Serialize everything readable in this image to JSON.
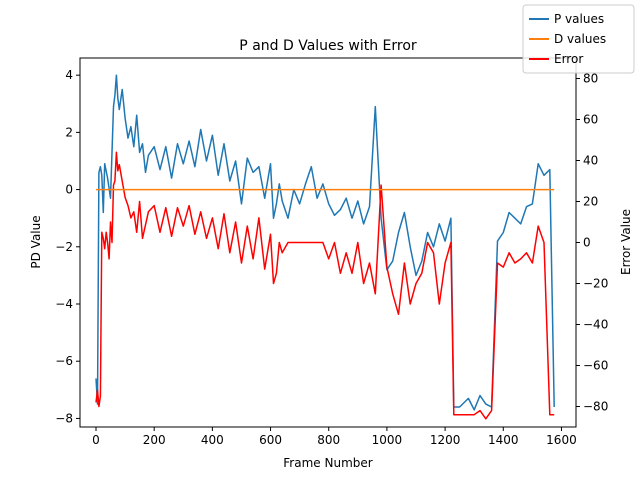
{
  "chart_data": {
    "type": "line",
    "title": "P and D Values with Error",
    "xlabel": "Frame Number",
    "ylabel_left": "PD Value",
    "ylabel_right": "Error Value",
    "xlim": [
      -55,
      1650
    ],
    "ylim_left": [
      -8.3,
      4.6
    ],
    "ylim_right": [
      -90,
      90
    ],
    "x_ticks": [
      0,
      200,
      400,
      600,
      800,
      1000,
      1200,
      1400,
      1600
    ],
    "y_ticks_left": [
      -8,
      -6,
      -4,
      -2,
      0,
      2,
      4
    ],
    "y_ticks_right": [
      -80,
      -60,
      -40,
      -20,
      0,
      20,
      40,
      60,
      80
    ],
    "legend_position": "top-right",
    "colors": {
      "p": "#1f77b4",
      "d": "#ff7f0e",
      "error": "#ff0000"
    },
    "series": [
      {
        "name": "P values",
        "axis": "left",
        "x": [
          0,
          5,
          10,
          15,
          20,
          25,
          30,
          40,
          50,
          60,
          65,
          70,
          75,
          80,
          90,
          100,
          110,
          120,
          130,
          140,
          150,
          160,
          170,
          180,
          200,
          220,
          240,
          260,
          280,
          300,
          320,
          340,
          360,
          380,
          400,
          420,
          440,
          460,
          480,
          500,
          520,
          540,
          560,
          580,
          600,
          610,
          620,
          630,
          640,
          660,
          680,
          700,
          720,
          740,
          760,
          780,
          800,
          820,
          840,
          860,
          880,
          900,
          920,
          940,
          960,
          980,
          1000,
          1020,
          1040,
          1060,
          1080,
          1100,
          1120,
          1140,
          1160,
          1180,
          1200,
          1220,
          1230,
          1250,
          1280,
          1300,
          1320,
          1340,
          1360,
          1380,
          1400,
          1420,
          1440,
          1460,
          1480,
          1500,
          1520,
          1540,
          1560,
          1575
        ],
        "y": [
          -6.6,
          -7.5,
          0.6,
          0.8,
          0.5,
          -0.8,
          0.9,
          0.4,
          -0.3,
          2.9,
          3.3,
          4.0,
          3.2,
          2.8,
          3.5,
          2.5,
          1.8,
          2.2,
          1.5,
          2.6,
          1.3,
          1.6,
          0.6,
          1.2,
          1.5,
          0.7,
          1.5,
          0.4,
          1.6,
          0.9,
          1.7,
          0.8,
          2.1,
          1.0,
          1.9,
          0.5,
          1.6,
          0.3,
          1.0,
          -0.5,
          1.1,
          0.6,
          0.8,
          -0.3,
          0.9,
          -1.0,
          -0.5,
          0.2,
          -0.4,
          -1.0,
          0.0,
          -0.5,
          0.2,
          0.8,
          -0.3,
          0.2,
          -0.5,
          -0.9,
          -0.7,
          -0.3,
          -1.0,
          -0.4,
          -1.2,
          -0.6,
          2.9,
          -1.0,
          -2.8,
          -2.5,
          -1.5,
          -0.8,
          -2.0,
          -3.0,
          -2.5,
          -1.5,
          -2.0,
          -1.2,
          -1.8,
          -1.0,
          -7.6,
          -7.6,
          -7.3,
          -7.7,
          -7.2,
          -7.5,
          -7.6,
          -1.8,
          -1.5,
          -0.8,
          -1.0,
          -1.2,
          -0.6,
          -0.5,
          0.9,
          0.5,
          0.7,
          -7.6
        ]
      },
      {
        "name": "D values",
        "axis": "left",
        "x": [
          0,
          1575
        ],
        "y": [
          0,
          0
        ]
      },
      {
        "name": "Error",
        "axis": "right",
        "x": [
          0,
          5,
          10,
          15,
          20,
          25,
          30,
          35,
          40,
          45,
          50,
          55,
          60,
          65,
          70,
          75,
          80,
          90,
          100,
          110,
          120,
          130,
          140,
          150,
          160,
          180,
          200,
          220,
          240,
          260,
          280,
          300,
          320,
          340,
          360,
          380,
          400,
          420,
          440,
          460,
          480,
          500,
          520,
          540,
          560,
          580,
          600,
          610,
          620,
          630,
          640,
          660,
          680,
          700,
          720,
          740,
          760,
          780,
          800,
          820,
          840,
          860,
          880,
          900,
          920,
          940,
          960,
          980,
          1000,
          1020,
          1040,
          1060,
          1080,
          1100,
          1120,
          1140,
          1160,
          1180,
          1200,
          1220,
          1230,
          1250,
          1280,
          1300,
          1320,
          1340,
          1360,
          1380,
          1400,
          1420,
          1440,
          1460,
          1480,
          1500,
          1520,
          1540,
          1560,
          1575
        ],
        "y": [
          -78,
          -72,
          -80,
          -75,
          5,
          2,
          -3,
          5,
          0,
          -8,
          10,
          0,
          28,
          30,
          44,
          35,
          38,
          30,
          22,
          18,
          12,
          15,
          5,
          20,
          2,
          15,
          18,
          5,
          17,
          3,
          17,
          8,
          18,
          4,
          15,
          2,
          12,
          -3,
          14,
          -5,
          10,
          -10,
          8,
          -8,
          12,
          -13,
          4,
          -20,
          -15,
          0,
          -5,
          0,
          0,
          0,
          0,
          0,
          0,
          0,
          -8,
          0,
          -15,
          -5,
          -15,
          0,
          -20,
          -10,
          -25,
          28,
          -12,
          -25,
          -35,
          -10,
          -30,
          -20,
          -15,
          0,
          -5,
          -30,
          -10,
          0,
          -84,
          -84,
          -84,
          -84,
          -82,
          -86,
          -82,
          -10,
          -12,
          -5,
          -10,
          -8,
          -5,
          -10,
          8,
          0,
          -84,
          -84
        ]
      }
    ]
  }
}
